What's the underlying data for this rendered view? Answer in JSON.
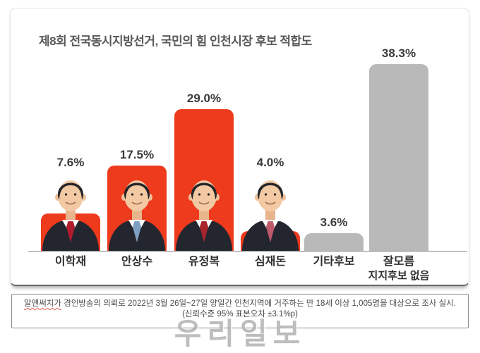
{
  "page": {
    "title": "제8회 전국동시지방선거, 국민의 힘 인천시장 후보 적합도",
    "watermark": "우리일보"
  },
  "footnote": {
    "source_name": "알앤써치가",
    "line1_rest": " 경인방송의 의뢰로 2022년 3월 26일~27일 양일간 인천지역에 거주하는 만 18세 이상 1,005명을 대상으로 조사 실시.",
    "line2": "(신뢰수준 95% 표본오차 ±3.1%p)"
  },
  "chart_data": {
    "type": "bar",
    "title": "제8회 전국동시지방선거, 국민의 힘 인천시장 후보 적합도",
    "categories": [
      "이학재",
      "안상수",
      "유정복",
      "심재돈",
      "기타후보",
      "잘모름 지지후보 없음"
    ],
    "values": [
      7.6,
      17.5,
      29.0,
      4.0,
      3.6,
      38.3
    ],
    "unit": "%",
    "ylim": [
      0,
      40
    ],
    "grid": false,
    "legend": false,
    "bar_colors": {
      "candidate": "#ee3a1d",
      "neutral": "#b9b9b9"
    },
    "axis_color": "#8c8c8c",
    "bars": [
      {
        "label": "이학재",
        "value": 7.6,
        "value_label": "7.6%",
        "color": "#ee3a1d",
        "photo": true,
        "tie": "#b01c2e",
        "name_lines": [
          "이학재"
        ]
      },
      {
        "label": "안상수",
        "value": 17.5,
        "value_label": "17.5%",
        "color": "#ee3a1d",
        "photo": true,
        "tie": "#7f9fc0",
        "name_lines": [
          "안상수"
        ]
      },
      {
        "label": "유정복",
        "value": 29.0,
        "value_label": "29.0%",
        "color": "#ee3a1d",
        "photo": true,
        "tie": "#a8252e",
        "name_lines": [
          "유정복"
        ]
      },
      {
        "label": "심재돈",
        "value": 4.0,
        "value_label": "4.0%",
        "color": "#ee3a1d",
        "photo": true,
        "tie": "#c05a6a",
        "name_lines": [
          "심재돈"
        ]
      },
      {
        "label": "기타후보",
        "value": 3.6,
        "value_label": "3.6%",
        "color": "#b9b9b9",
        "photo": false,
        "name_lines": [
          "기타후보"
        ]
      },
      {
        "label": "잘모름 지지후보 없음",
        "value": 38.3,
        "value_label": "38.3%",
        "color": "#b9b9b9",
        "photo": false,
        "name_lines": [
          "잘모름",
          "지지후보 없음"
        ]
      }
    ]
  }
}
